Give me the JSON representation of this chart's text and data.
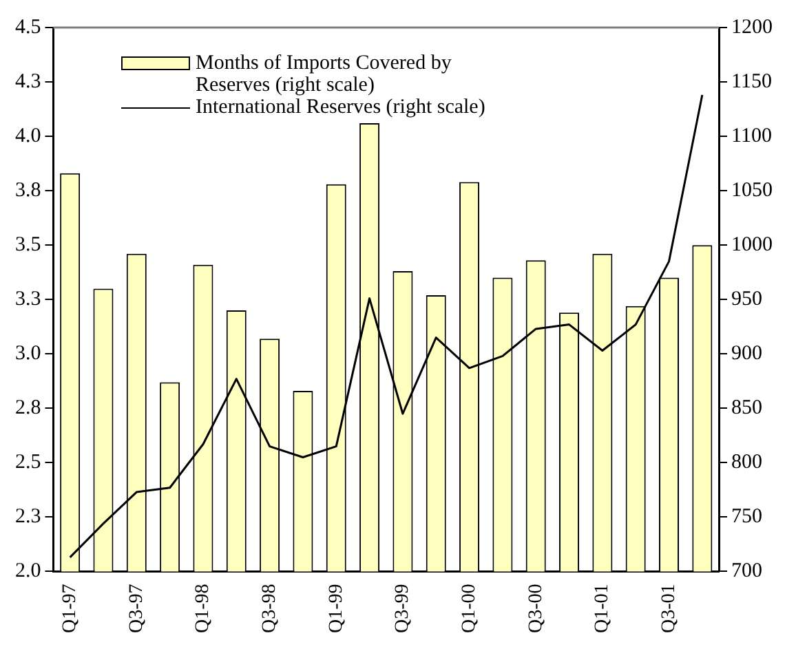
{
  "chart_data": {
    "type": "bar",
    "categories": [
      "Q1-97",
      null,
      "Q3-97",
      null,
      "Q1-98",
      null,
      "Q3-98",
      null,
      "Q1-99",
      null,
      "Q3-99",
      null,
      "Q1-00",
      null,
      "Q3-00",
      null,
      "Q1-01",
      null,
      "Q3-01",
      null
    ],
    "series": [
      {
        "name": "Months of Imports Covered by Reserves (right scale)",
        "color": "#ffffc0",
        "values": [
          3.83,
          3.3,
          3.46,
          2.87,
          3.41,
          3.2,
          3.07,
          2.83,
          3.78,
          4.06,
          3.38,
          3.27,
          3.79,
          3.35,
          3.43,
          3.19,
          3.46,
          3.22,
          3.35,
          3.5
        ]
      },
      {
        "name": "International Reserves (right scale)",
        "type": "line",
        "axis": "y2",
        "color": "#000000",
        "values": [
          713,
          744,
          773,
          777,
          817,
          877,
          815,
          805,
          815,
          951,
          845,
          915,
          887,
          898,
          923,
          927,
          903,
          927,
          985,
          1138
        ]
      }
    ],
    "ylim": [
      2,
      4.5
    ],
    "yticks": [
      {
        "value": 2,
        "label": "2.0"
      },
      {
        "value": 2.25,
        "label": "2.3"
      },
      {
        "value": 2.5,
        "label": "2.5"
      },
      {
        "value": 2.75,
        "label": "2.8"
      },
      {
        "value": 3,
        "label": "3.0"
      },
      {
        "value": 3.25,
        "label": "3.3"
      },
      {
        "value": 3.5,
        "label": "3.5"
      },
      {
        "value": 3.75,
        "label": "3.8"
      },
      {
        "value": 4,
        "label": "4.0"
      },
      {
        "value": 4.25,
        "label": "4.3"
      },
      {
        "value": 4.5,
        "label": "4.5"
      }
    ],
    "y2lim": [
      700,
      1200
    ],
    "y2ticks": [
      700,
      750,
      800,
      850,
      900,
      950,
      1000,
      1050,
      1100,
      1150,
      1200
    ],
    "grid": false,
    "legend": "top left",
    "marker": "none",
    "line_style": "solid"
  }
}
